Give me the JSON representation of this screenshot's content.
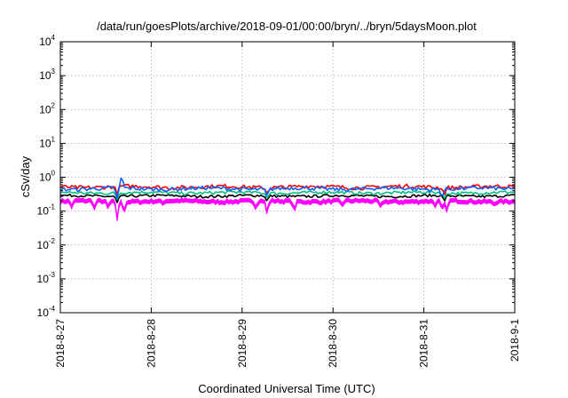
{
  "chart_data": {
    "type": "line",
    "title": "/data/run/goesPlots/archive/2018-09-01/00:00/bryn/../bryn/5daysMoon.plot",
    "xlabel": "Coordinated Universal Time (UTC)",
    "ylabel": "cSv/day",
    "yscale": "log",
    "ylim": [
      0.0001,
      10000
    ],
    "y_ticks": [
      {
        "base": "10",
        "exp": "-4",
        "value": 0.0001
      },
      {
        "base": "10",
        "exp": "-3",
        "value": 0.001
      },
      {
        "base": "10",
        "exp": "-2",
        "value": 0.01
      },
      {
        "base": "10",
        "exp": "-1",
        "value": 0.1
      },
      {
        "base": "10",
        "exp": "0",
        "value": 1
      },
      {
        "base": "10",
        "exp": "1",
        "value": 10
      },
      {
        "base": "10",
        "exp": "2",
        "value": 100
      },
      {
        "base": "10",
        "exp": "3",
        "value": 1000
      },
      {
        "base": "10",
        "exp": "4",
        "value": 10000
      }
    ],
    "xlim": [
      "2018-08-27",
      "2018-09-01"
    ],
    "x_ticks": [
      "2018-8-27",
      "2018-8-28",
      "2018-8-29",
      "2018-8-30",
      "2018-8-31",
      "2018-9-1"
    ],
    "grid": true,
    "series": [
      {
        "color": "#ff00ff",
        "fill": true,
        "baseline": 0.22,
        "amplitude": 0.02,
        "dips": [
          {
            "x": 0.025,
            "y": 0.15
          },
          {
            "x": 0.075,
            "y": 0.14
          },
          {
            "x": 0.105,
            "y": 0.15
          },
          {
            "x": 0.125,
            "y": 0.065
          },
          {
            "x": 0.14,
            "y": 0.11
          },
          {
            "x": 0.225,
            "y": 0.19
          },
          {
            "x": 0.43,
            "y": 0.14
          },
          {
            "x": 0.455,
            "y": 0.1
          },
          {
            "x": 0.515,
            "y": 0.12
          },
          {
            "x": 0.62,
            "y": 0.17
          },
          {
            "x": 0.705,
            "y": 0.16
          },
          {
            "x": 0.825,
            "y": 0.16
          },
          {
            "x": 0.84,
            "y": 0.13
          },
          {
            "x": 0.85,
            "y": 0.12
          },
          {
            "x": 0.955,
            "y": 0.18
          }
        ]
      },
      {
        "color": "#000000",
        "baseline": 0.28,
        "amplitude": 0.025,
        "dips": [
          {
            "x": 0.125,
            "y": 0.18
          },
          {
            "x": 0.455,
            "y": 0.2
          },
          {
            "x": 0.845,
            "y": 0.2
          }
        ]
      },
      {
        "color": "#00c080",
        "baseline": 0.35,
        "amplitude": 0.035,
        "dips": [
          {
            "x": 0.125,
            "y": 0.22
          },
          {
            "x": 0.455,
            "y": 0.25
          },
          {
            "x": 0.845,
            "y": 0.24
          }
        ]
      },
      {
        "color": "#ff0000",
        "baseline": 0.52,
        "amplitude": 0.07,
        "dips": [
          {
            "x": 0.125,
            "y": 0.3
          },
          {
            "x": 0.455,
            "y": 0.34
          },
          {
            "x": 0.845,
            "y": 0.3
          }
        ]
      },
      {
        "color": "#1060ff",
        "baseline": 0.46,
        "amplitude": 0.06,
        "peaks": [
          {
            "x": 0.135,
            "y": 1.1
          }
        ],
        "dips": [
          {
            "x": 0.125,
            "y": 0.24
          },
          {
            "x": 0.455,
            "y": 0.28
          },
          {
            "x": 0.84,
            "y": 0.26
          }
        ]
      }
    ]
  }
}
